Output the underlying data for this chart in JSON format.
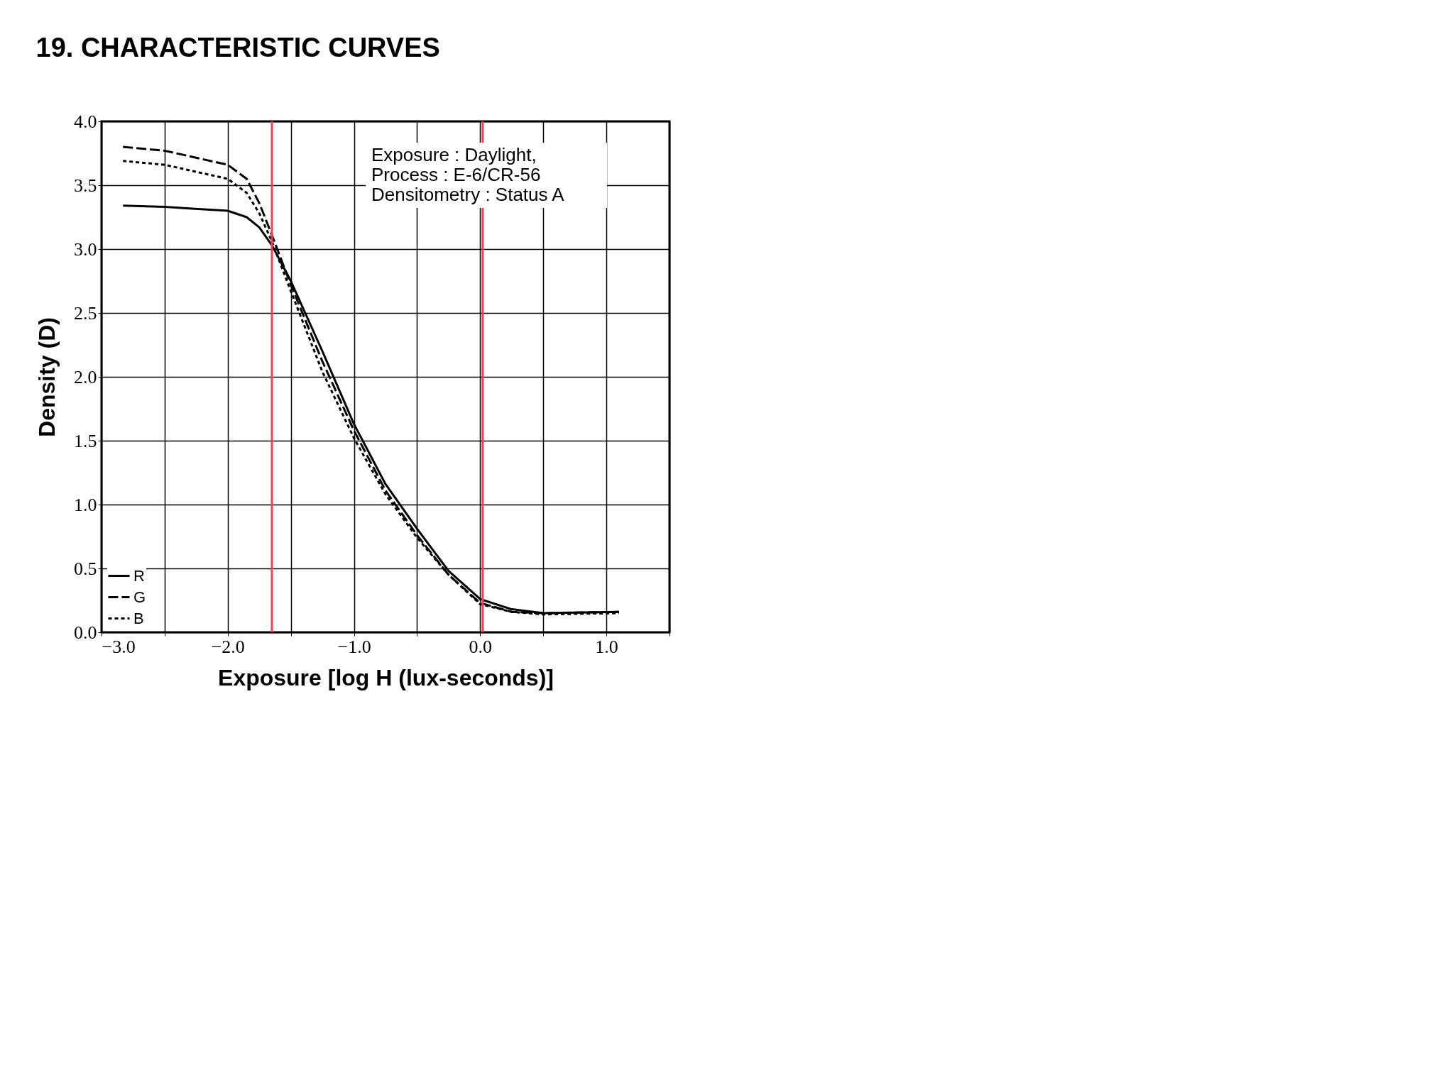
{
  "chart_data": {
    "type": "line",
    "title": "19.   CHARACTERISTIC CURVES",
    "xlabel": "Exposure [log H (lux-seconds)]",
    "ylabel": "Density (D)",
    "xlim": [
      -3.0,
      1.5
    ],
    "ylim": [
      0,
      4
    ],
    "xticks": [
      {
        "value": -3,
        "label": "−3.0"
      },
      {
        "value": -2.5,
        "label": null
      },
      {
        "value": -2,
        "label": "−2.0"
      },
      {
        "value": -1.5,
        "label": null
      },
      {
        "value": -1,
        "label": "−1.0"
      },
      {
        "value": -0.5,
        "label": null
      },
      {
        "value": 0,
        "label": "0.0"
      },
      {
        "value": 0.5,
        "label": null
      },
      {
        "value": 1,
        "label": "1.0"
      },
      {
        "value": 1.5,
        "label": null
      }
    ],
    "yticks": [
      {
        "value": 0,
        "label": "0.0"
      },
      {
        "value": 0.5,
        "label": "0.5"
      },
      {
        "value": 1,
        "label": "1.0"
      },
      {
        "value": 1.5,
        "label": "1.5"
      },
      {
        "value": 2,
        "label": "2.0"
      },
      {
        "value": 2.5,
        "label": "2.5"
      },
      {
        "value": 3,
        "label": "3.0"
      },
      {
        "value": 3.5,
        "label": "3.5"
      },
      {
        "value": 4,
        "label": "4.0"
      }
    ],
    "grid": true,
    "legend": "bottom left",
    "x": [
      -2.83,
      -2.5,
      -2.0,
      -1.85,
      -1.75,
      -1.65,
      -1.5,
      -1.25,
      -1.0,
      -0.75,
      -0.5,
      -0.25,
      0,
      0.25,
      0.5,
      1.1
    ],
    "series": [
      {
        "name": "R",
        "color": "#000000",
        "line_style": "solid",
        "values": [
          3.34,
          3.33,
          3.3,
          3.25,
          3.17,
          3.03,
          2.75,
          2.2,
          1.63,
          1.16,
          0.81,
          0.48,
          0.26,
          0.18,
          0.15,
          0.16
        ]
      },
      {
        "name": "G",
        "color": "#000000",
        "line_style": "dashed",
        "values": [
          3.8,
          3.77,
          3.66,
          3.55,
          3.36,
          3.11,
          2.72,
          2.12,
          1.58,
          1.11,
          0.76,
          0.45,
          0.23,
          0.16,
          0.15,
          0.16
        ]
      },
      {
        "name": "B",
        "color": "#000000",
        "line_style": "dotted",
        "values": [
          3.69,
          3.66,
          3.55,
          3.44,
          3.28,
          3.06,
          2.67,
          2.04,
          1.52,
          1.08,
          0.74,
          0.45,
          0.22,
          0.16,
          0.14,
          0.15
        ]
      }
    ],
    "ref_lines": [
      {
        "axis": "x",
        "value": -1.65,
        "color": "#ff3b4e"
      },
      {
        "axis": "x",
        "value": 0.02,
        "color": "#ff3b4e"
      }
    ],
    "annotations": [
      "Exposure        : Daylight,",
      "Process           : E-6/CR-56",
      "Densitometry : Status A"
    ]
  }
}
